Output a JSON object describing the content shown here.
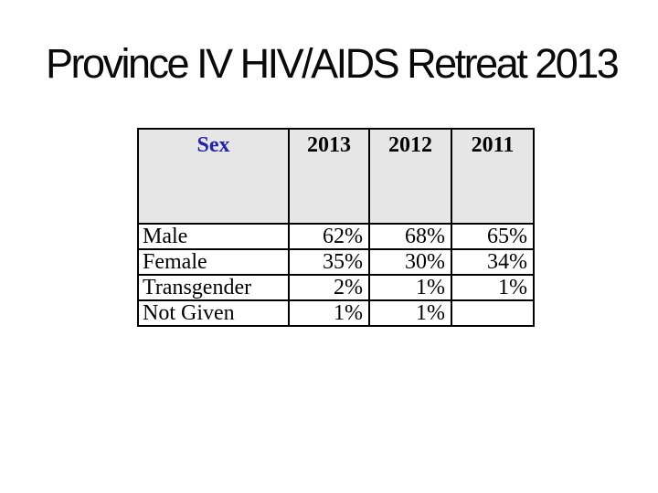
{
  "slide": {
    "title": "Province IV HIV/AIDS Retreat 2013"
  },
  "table": {
    "columns": [
      "Sex",
      "2013",
      "2012",
      "2011"
    ],
    "rows": [
      {
        "label": "Male",
        "values": [
          "62%",
          "68%",
          "65%"
        ]
      },
      {
        "label": "Female",
        "values": [
          "35%",
          "30%",
          "34%"
        ]
      },
      {
        "label": "Transgender",
        "values": [
          "2%",
          "1%",
          "1%"
        ]
      },
      {
        "label": "Not Given",
        "values": [
          "1%",
          "1%",
          ""
        ]
      }
    ]
  },
  "colors": {
    "title_color": "#0a0a0a",
    "header_background": "#e6e6e6",
    "sex_header_color": "#2323a8",
    "table_border": "#000000",
    "slide_background": "#ffffff"
  }
}
